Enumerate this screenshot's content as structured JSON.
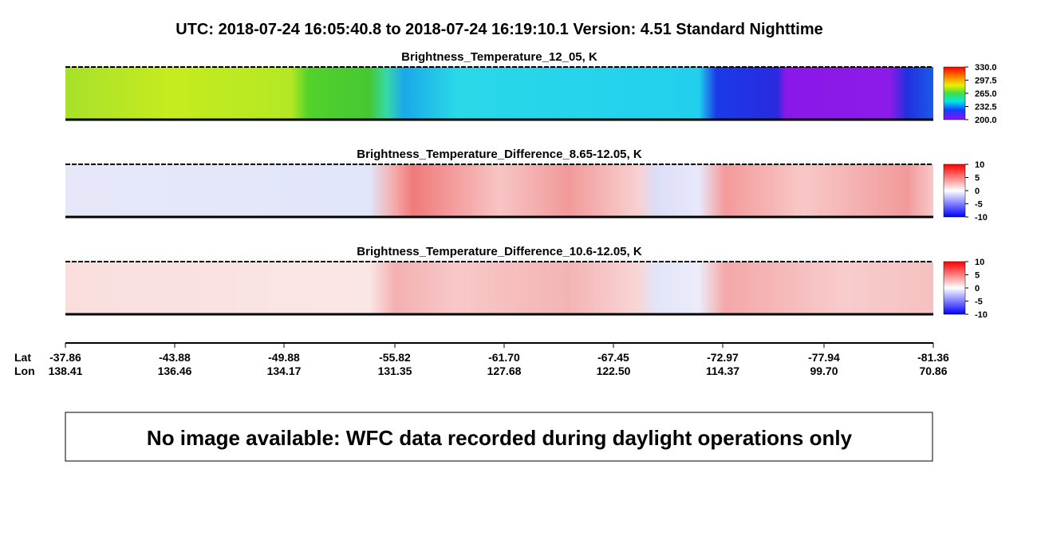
{
  "header": {
    "title": "UTC:  2018-07-24   16:05:40.8  to  2018-07-24   16:19:10.1    Version: 4.51  Standard Nighttime"
  },
  "panels": [
    {
      "title": "Brightness_Temperature_12_05, K",
      "clim": [
        200,
        330
      ],
      "ticks": [
        {
          "value": 330,
          "label": "330.0"
        },
        297.5,
        {
          "value": 265,
          "label": "265.0"
        },
        232.5,
        {
          "value": 200,
          "label": "200.0"
        }
      ]
    },
    {
      "title": "Brightness_Temperature_Difference_8.65-12.05, K",
      "clim": [
        -10,
        10
      ],
      "ticks": [
        10,
        5,
        0,
        -5,
        -10
      ]
    },
    {
      "title": "Brightness_Temperature_Difference_10.6-12.05, K",
      "clim": [
        -10,
        10
      ],
      "ticks": [
        10,
        5,
        0,
        -5,
        -10
      ]
    }
  ],
  "axis": {
    "lat_label": "Lat",
    "lon_label": "Lon",
    "lat": [
      "-37.86",
      "-43.88",
      "-49.88",
      "-55.82",
      "-61.70",
      "-67.45",
      "-72.97",
      "-77.94",
      "-81.36"
    ],
    "lon": [
      "138.41",
      "136.46",
      "134.17",
      "131.35",
      "127.68",
      "122.50",
      "114.37",
      "99.70",
      "70.86"
    ]
  },
  "message": "No image available: WFC data recorded during daylight operations only"
}
